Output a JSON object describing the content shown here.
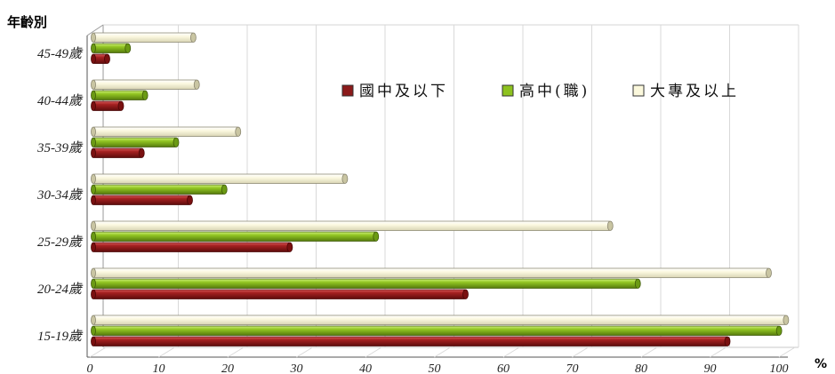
{
  "chart_data": {
    "type": "bar",
    "orientation": "horizontal",
    "ylabel": "年齡別",
    "xlabel": "%",
    "categories": [
      "15-19歲",
      "20-24歲",
      "25-29歲",
      "30-34歲",
      "35-39歲",
      "40-44歲",
      "45-49歲"
    ],
    "series": [
      {
        "name": "國中及以下",
        "color": "#8b1a1a",
        "values": [
          92,
          54,
          28.5,
          14,
          7,
          4,
          2
        ]
      },
      {
        "name": "高中(職)",
        "color": "#8dc21f",
        "values": [
          99.5,
          79,
          41,
          19,
          12,
          7.5,
          5
        ]
      },
      {
        "name": "大專及以上",
        "color": "#fbf8dc",
        "values": [
          100.5,
          98,
          75,
          36.5,
          21,
          15,
          14.5
        ]
      }
    ],
    "xlim": [
      0,
      100
    ],
    "xticks": [
      0,
      10,
      20,
      30,
      40,
      50,
      60,
      70,
      80,
      90,
      100
    ],
    "grid": true,
    "legend_position": "top-right"
  }
}
